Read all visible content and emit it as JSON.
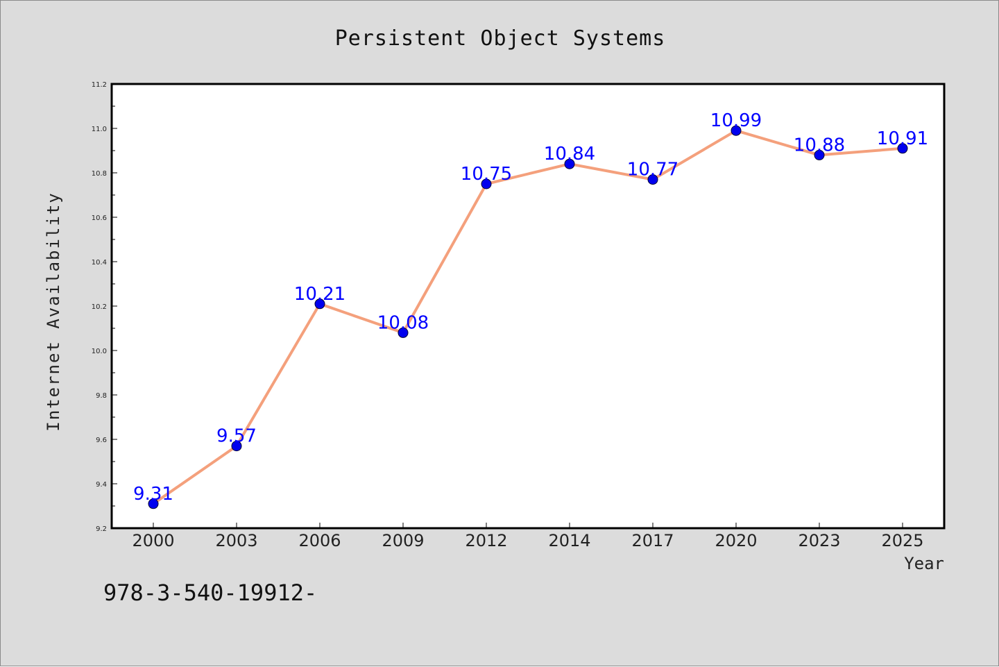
{
  "chart_data": {
    "type": "line",
    "title": "Persistent Object Systems",
    "xlabel": "Year",
    "ylabel": "Internet Availability",
    "categories": [
      "2000",
      "2003",
      "2006",
      "2009",
      "2012",
      "2014",
      "2017",
      "2020",
      "2023",
      "2025"
    ],
    "series": [
      {
        "values": [
          9.31,
          9.57,
          10.21,
          10.08,
          10.75,
          10.84,
          10.77,
          10.99,
          10.88,
          10.91
        ],
        "labels": [
          "9.31",
          "9.57",
          "10.21",
          "10.08",
          "10.75",
          "10.84",
          "10.77",
          "10.99",
          "10.88",
          "10.91"
        ],
        "line_color": "#f4a07c",
        "marker_color": "#0000ee",
        "label_color": "#0000ff"
      }
    ],
    "ylim": [
      9.2,
      11.2
    ],
    "yticks": [
      "9.2",
      "9.4",
      "9.6",
      "9.8",
      "10.0",
      "10.2",
      "10.4",
      "10.6",
      "10.8",
      "11.0",
      "11.2"
    ],
    "grid": false,
    "legend": "none"
  },
  "footer": {
    "text": "978-3-540-19912-"
  },
  "colors": {
    "background": "#dcdcdc",
    "plot_area": "#ffffff",
    "axis": "#000000"
  }
}
